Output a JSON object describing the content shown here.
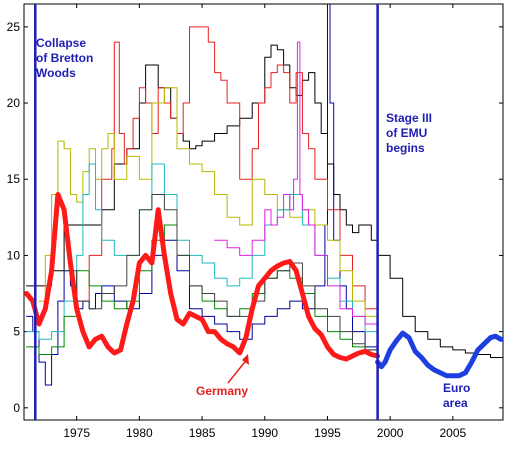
{
  "chart_data": {
    "type": "line",
    "title": "",
    "xlabel": "",
    "ylabel": "",
    "xlim": [
      1970.8,
      2009.0
    ],
    "ylim": [
      -0.8,
      26.5
    ],
    "x_ticks": [
      1975,
      1980,
      1985,
      1990,
      1995,
      2000,
      2005
    ],
    "y_ticks": [
      0,
      5,
      10,
      15,
      20,
      25
    ],
    "grid": false,
    "legend": "none",
    "vlines": [
      {
        "x": 1971.7,
        "color": "#1f1fb4"
      },
      {
        "x": 1999.0,
        "color": "#1f1fb4"
      }
    ],
    "annotations": [
      {
        "lines": [
          "Collapse",
          "of Bretton",
          "Woods"
        ],
        "color": "#1f1fb4"
      },
      {
        "lines": [
          "Stage III",
          "of EMU",
          "begins"
        ],
        "color": "#1f1fb4"
      },
      {
        "lines": [
          "Germany"
        ],
        "color": "#e82020"
      },
      {
        "lines": [
          "Euro",
          "area"
        ],
        "color": "#1f1fb4"
      }
    ],
    "series": [
      {
        "name": "Germany",
        "color": "#ff1a1a",
        "width": 5,
        "x": [
          1971.0,
          1971.5,
          1972.0,
          1972.5,
          1973.0,
          1973.5,
          1974.0,
          1974.5,
          1975.0,
          1975.5,
          1976.0,
          1976.5,
          1977.0,
          1977.5,
          1978.0,
          1978.5,
          1979.0,
          1979.5,
          1980.0,
          1980.5,
          1981.0,
          1981.5,
          1982.0,
          1982.5,
          1983.0,
          1983.5,
          1984.0,
          1984.5,
          1985.0,
          1985.5,
          1986.0,
          1986.5,
          1987.0,
          1987.5,
          1988.0,
          1988.5,
          1989.0,
          1989.5,
          1990.0,
          1990.5,
          1991.0,
          1991.5,
          1992.0,
          1992.5,
          1993.0,
          1993.5,
          1994.0,
          1994.5,
          1995.0,
          1995.5,
          1996.0,
          1996.5,
          1997.0,
          1997.5,
          1998.0,
          1998.5,
          1999.0
        ],
        "y": [
          7.5,
          7.0,
          5.5,
          6.5,
          9.0,
          14.0,
          13.0,
          9.5,
          6.5,
          5.0,
          4.0,
          4.5,
          4.7,
          4.0,
          3.6,
          3.8,
          5.5,
          7.0,
          9.5,
          10.0,
          9.5,
          13.0,
          10.0,
          7.5,
          5.8,
          5.5,
          6.2,
          6.0,
          5.8,
          5.0,
          5.0,
          4.5,
          4.2,
          4.0,
          3.6,
          4.6,
          6.5,
          8.0,
          8.5,
          9.0,
          9.3,
          9.5,
          9.6,
          9.0,
          7.5,
          6.0,
          5.2,
          4.8,
          4.0,
          3.5,
          3.3,
          3.2,
          3.4,
          3.6,
          3.7,
          3.5,
          3.4
        ]
      },
      {
        "name": "Euro area",
        "color": "#1d3fe0",
        "width": 5,
        "x": [
          1999.0,
          1999.3,
          1999.6,
          2000.0,
          2000.5,
          2001.0,
          2001.5,
          2002.0,
          2002.5,
          2003.0,
          2003.5,
          2004.0,
          2004.5,
          2005.0,
          2005.5,
          2006.0,
          2006.5,
          2007.0,
          2007.5,
          2008.0,
          2008.4,
          2008.8,
          2009.0
        ],
        "y": [
          3.0,
          2.7,
          3.0,
          3.8,
          4.4,
          4.9,
          4.6,
          3.7,
          3.3,
          2.8,
          2.5,
          2.3,
          2.1,
          2.1,
          2.1,
          2.3,
          3.0,
          3.8,
          4.2,
          4.6,
          4.7,
          4.5,
          4.5
        ]
      },
      {
        "name": "",
        "color": "#000000",
        "width": 1,
        "x": [
          1971.0,
          1972.0,
          1973.0,
          1974.0,
          1975.0,
          1976.0,
          1977.0,
          1978.0,
          1979.0,
          1980.0,
          1980.5,
          1981.0,
          1981.5,
          1982.0,
          1982.5,
          1983.0,
          1983.5,
          1984.0,
          1984.5,
          1985.0,
          1986.0,
          1987.0,
          1988.0,
          1989.0,
          1990.0,
          1990.5,
          1991.0,
          1991.5,
          1992.0,
          1992.5,
          1993.0,
          1993.5,
          1994.0,
          1994.5,
          1995.0,
          1995.5,
          1996.0,
          1996.5,
          1997.0,
          1997.5,
          1998.0,
          1998.5,
          1999.0,
          2000.0,
          2001.0,
          2002.0,
          2003.0,
          2004.0,
          2005.0,
          2006.0,
          2007.0,
          2008.0,
          2009.0
        ],
        "y": [
          8.0,
          8.0,
          9.0,
          12.0,
          12.0,
          12.0,
          13.0,
          16.0,
          17.0,
          20.0,
          22.5,
          22.5,
          21.0,
          21.0,
          19.0,
          18.0,
          17.5,
          17.0,
          17.2,
          17.5,
          18.0,
          18.5,
          19.0,
          20.0,
          23.0,
          23.8,
          23.5,
          22.5,
          21.0,
          20.5,
          21.5,
          22.0,
          20.0,
          18.0,
          16.0,
          14.0,
          13.0,
          12.0,
          11.5,
          12.0,
          12.0,
          11.0,
          10.0,
          8.5,
          6.0,
          5.0,
          4.5,
          4.0,
          3.8,
          3.6,
          3.5,
          3.3,
          3.5
        ]
      },
      {
        "name": "",
        "color": "#0000a0",
        "width": 1,
        "x": [
          1971.0,
          1971.5,
          1972.0,
          1972.5,
          1973.0,
          1973.5,
          1974.0,
          1974.5,
          1975.0,
          1975.5,
          1976.0,
          1976.5,
          1977.0,
          1977.5,
          1978.0,
          1979.0,
          1980.0,
          1981.0,
          1982.0,
          1983.0,
          1984.0,
          1985.0,
          1986.0,
          1987.0,
          1988.0,
          1989.0,
          1990.0,
          1991.0,
          1992.0,
          1993.0,
          1994.0,
          1994.8,
          1995.0,
          1995.2,
          1995.5,
          1996.0,
          1996.5,
          1997.0,
          1998.0,
          1999.0
        ],
        "y": [
          6.0,
          5.0,
          3.0,
          1.5,
          3.5,
          7.0,
          9.0,
          8.0,
          6.5,
          7.0,
          6.5,
          7.5,
          8.0,
          8.0,
          7.0,
          6.5,
          7.5,
          10.0,
          11.0,
          9.0,
          6.5,
          6.0,
          5.5,
          5.0,
          4.5,
          5.5,
          6.0,
          6.5,
          7.0,
          6.5,
          8.0,
          12.0,
          27.0,
          20.0,
          11.0,
          8.0,
          6.5,
          5.0,
          4.0,
          3.5
        ]
      },
      {
        "name": "",
        "color": "#e82020",
        "width": 1,
        "x": [
          1975.0,
          1976.0,
          1977.0,
          1977.8,
          1978.0,
          1978.4,
          1978.8,
          1979.0,
          1979.5,
          1980.0,
          1980.5,
          1981.0,
          1981.5,
          1982.0,
          1982.5,
          1983.0,
          1983.5,
          1984.0,
          1984.5,
          1985.0,
          1985.5,
          1986.0,
          1986.5,
          1987.0,
          1988.0,
          1989.0,
          1989.5,
          1990.0,
          1990.5,
          1991.0,
          1991.5,
          1992.0,
          1992.5,
          1993.0,
          1993.5,
          1994.0,
          1995.0,
          1996.0,
          1997.0,
          1998.0,
          1999.0
        ],
        "y": [
          7.0,
          10.0,
          15.0,
          17.0,
          24.0,
          18.0,
          16.0,
          17.0,
          19.0,
          21.0,
          20.0,
          18.0,
          21.0,
          20.0,
          19.0,
          18.0,
          20.0,
          25.0,
          25.0,
          25.0,
          24.0,
          22.0,
          21.5,
          20.0,
          15.0,
          17.0,
          20.0,
          21.0,
          22.0,
          22.5,
          22.0,
          20.0,
          22.0,
          18.0,
          17.0,
          15.0,
          13.0,
          10.0,
          8.0,
          6.5,
          5.0
        ]
      },
      {
        "name": "",
        "color": "#b8b800",
        "width": 1,
        "x": [
          1972.0,
          1972.5,
          1973.0,
          1973.5,
          1974.0,
          1974.5,
          1975.0,
          1975.5,
          1976.0,
          1976.5,
          1977.0,
          1977.5,
          1978.0,
          1979.0,
          1980.0,
          1981.0,
          1982.0,
          1983.0,
          1984.0,
          1985.0,
          1986.0,
          1987.0,
          1988.0,
          1989.0,
          1990.0,
          1991.0,
          1992.0,
          1993.0,
          1994.0,
          1995.0,
          1996.0,
          1997.0,
          1998.0,
          1999.0
        ],
        "y": [
          7.0,
          10.0,
          14.0,
          17.5,
          17.0,
          14.0,
          13.5,
          15.5,
          17.0,
          15.0,
          17.0,
          18.0,
          15.0,
          16.5,
          15.0,
          20.0,
          21.0,
          17.0,
          16.0,
          15.5,
          14.0,
          12.5,
          12.0,
          15.0,
          14.0,
          13.0,
          12.5,
          13.0,
          12.0,
          11.0,
          9.0,
          7.0,
          6.0,
          5.0
        ]
      },
      {
        "name": "",
        "color": "#20b8c0",
        "width": 1,
        "x": [
          1971.0,
          1972.0,
          1973.0,
          1974.0,
          1975.0,
          1975.5,
          1976.0,
          1976.5,
          1977.0,
          1978.0,
          1979.0,
          1980.0,
          1981.0,
          1982.0,
          1983.0,
          1984.0,
          1985.0,
          1986.0,
          1987.0,
          1988.0,
          1989.0,
          1990.0,
          1991.0,
          1992.0,
          1993.0,
          1994.0,
          1995.0,
          1996.0,
          1997.0,
          1998.0,
          1999.0
        ],
        "y": [
          5.0,
          4.5,
          5.0,
          7.0,
          10.0,
          14.0,
          16.0,
          13.0,
          11.0,
          10.0,
          10.0,
          13.0,
          16.0,
          14.0,
          11.0,
          10.0,
          9.5,
          8.5,
          8.0,
          8.5,
          10.0,
          12.0,
          13.0,
          14.0,
          12.0,
          10.0,
          8.5,
          7.0,
          6.0,
          5.0,
          4.5
        ]
      },
      {
        "name": "",
        "color": "#008a00",
        "width": 1,
        "x": [
          1971.0,
          1972.0,
          1973.0,
          1974.0,
          1975.0,
          1976.0,
          1977.0,
          1978.0,
          1979.0,
          1980.0,
          1981.0,
          1982.0,
          1983.0,
          1984.0,
          1985.0,
          1986.0,
          1987.0,
          1988.0,
          1989.0,
          1990.0,
          1991.0,
          1992.0,
          1993.0,
          1994.0,
          1995.0,
          1996.0,
          1997.0,
          1998.0,
          1999.0
        ],
        "y": [
          4.0,
          3.5,
          4.0,
          6.0,
          9.0,
          8.0,
          7.0,
          6.5,
          7.0,
          9.0,
          11.0,
          12.0,
          10.0,
          8.0,
          7.0,
          6.5,
          6.0,
          6.5,
          7.5,
          8.5,
          9.0,
          8.5,
          7.5,
          6.0,
          5.0,
          4.5,
          4.0,
          3.8,
          3.5
        ]
      },
      {
        "name": "",
        "color": "#e020e0",
        "width": 1,
        "x": [
          1986.0,
          1987.0,
          1988.0,
          1989.0,
          1990.0,
          1990.5,
          1991.0,
          1991.5,
          1992.0,
          1992.3,
          1992.6,
          1992.8,
          1993.0,
          1993.5,
          1994.0,
          1995.0,
          1996.0,
          1997.0,
          1998.0,
          1999.0
        ],
        "y": [
          11.0,
          10.5,
          10.0,
          11.0,
          13.0,
          12.0,
          12.5,
          14.0,
          13.0,
          15.0,
          24.0,
          14.0,
          13.0,
          12.0,
          10.0,
          8.0,
          6.5,
          6.0,
          5.5,
          5.0
        ]
      },
      {
        "name": "",
        "color": "#404040",
        "width": 1,
        "x": [
          1974.0,
          1975.0,
          1976.0,
          1977.0,
          1978.0,
          1979.0,
          1980.0,
          1981.0,
          1982.0,
          1983.0,
          1984.0,
          1985.0,
          1986.0,
          1987.0,
          1988.0,
          1989.0,
          1990.0,
          1991.0,
          1992.0,
          1993.0,
          1994.0,
          1995.0,
          1996.0,
          1997.0,
          1998.0,
          1999.0
        ],
        "y": [
          9.0,
          7.0,
          6.5,
          7.5,
          8.0,
          10.0,
          13.0,
          14.0,
          13.0,
          10.0,
          8.0,
          7.5,
          7.0,
          6.0,
          6.0,
          7.0,
          8.5,
          9.0,
          9.5,
          8.0,
          6.5,
          6.0,
          5.0,
          4.2,
          3.8,
          3.5
        ]
      }
    ]
  }
}
